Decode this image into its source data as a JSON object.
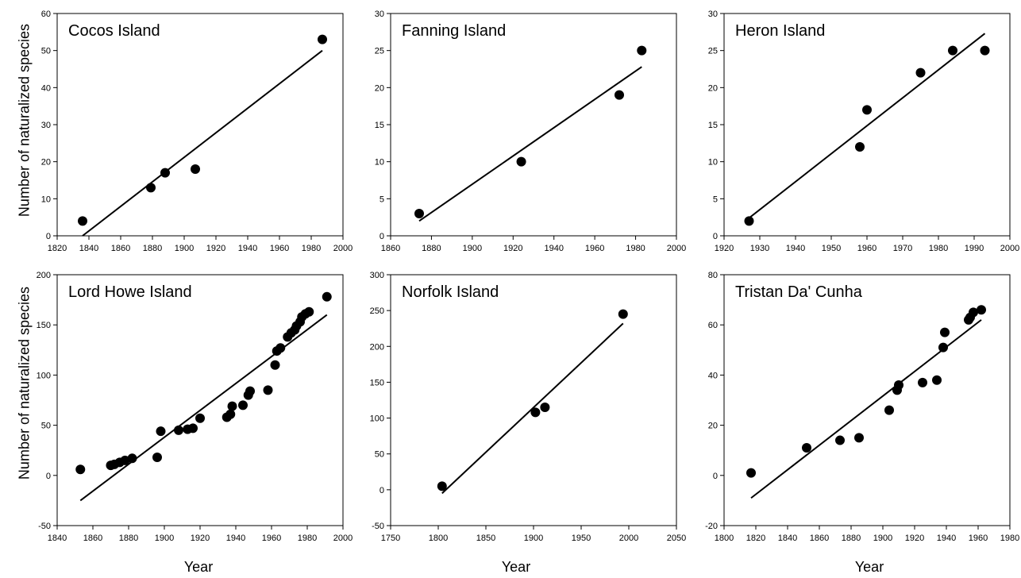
{
  "figure": {
    "ylabel": "Number of naturalized species",
    "xlabel": "Year"
  },
  "chart_data": [
    {
      "type": "scatter",
      "title": "Cocos Island",
      "xlim": [
        1820,
        2000
      ],
      "ylim": [
        0,
        60
      ],
      "xticks": [
        1820,
        1840,
        1860,
        1880,
        1900,
        1920,
        1940,
        1960,
        1980,
        2000
      ],
      "yticks": [
        0,
        10,
        20,
        30,
        40,
        50,
        60
      ],
      "points": [
        [
          1836,
          4
        ],
        [
          1879,
          13
        ],
        [
          1888,
          17
        ],
        [
          1907,
          18
        ],
        [
          1987,
          53
        ]
      ],
      "fit": [
        [
          1836,
          0
        ],
        [
          1987,
          50
        ]
      ]
    },
    {
      "type": "scatter",
      "title": "Fanning Island",
      "xlim": [
        1860,
        2000
      ],
      "ylim": [
        0,
        30
      ],
      "xticks": [
        1860,
        1880,
        1900,
        1920,
        1940,
        1960,
        1980,
        2000
      ],
      "yticks": [
        0,
        5,
        10,
        15,
        20,
        25,
        30
      ],
      "points": [
        [
          1874,
          3
        ],
        [
          1924,
          10
        ],
        [
          1972,
          19
        ],
        [
          1983,
          25
        ]
      ],
      "fit": [
        [
          1874,
          2
        ],
        [
          1983,
          22.8
        ]
      ]
    },
    {
      "type": "scatter",
      "title": "Heron Island",
      "xlim": [
        1920,
        2000
      ],
      "ylim": [
        0,
        30
      ],
      "xticks": [
        1920,
        1930,
        1940,
        1950,
        1960,
        1970,
        1980,
        1990,
        2000
      ],
      "yticks": [
        0,
        5,
        10,
        15,
        20,
        25,
        30
      ],
      "points": [
        [
          1927,
          2
        ],
        [
          1958,
          12
        ],
        [
          1960,
          17
        ],
        [
          1975,
          22
        ],
        [
          1984,
          25
        ],
        [
          1993,
          25
        ]
      ],
      "fit": [
        [
          1927,
          2.4
        ],
        [
          1993,
          27.3
        ]
      ]
    },
    {
      "type": "scatter",
      "title": "Lord Howe Island",
      "xlim": [
        1840,
        2000
      ],
      "ylim": [
        -50,
        200
      ],
      "xticks": [
        1840,
        1860,
        1880,
        1900,
        1920,
        1940,
        1960,
        1980,
        2000
      ],
      "yticks": [
        -50,
        0,
        50,
        100,
        150,
        200
      ],
      "points": [
        [
          1853,
          6
        ],
        [
          1870,
          10
        ],
        [
          1872,
          11
        ],
        [
          1875,
          13
        ],
        [
          1878,
          15
        ],
        [
          1882,
          17
        ],
        [
          1896,
          18
        ],
        [
          1898,
          44
        ],
        [
          1908,
          45
        ],
        [
          1913,
          46
        ],
        [
          1916,
          47
        ],
        [
          1920,
          57
        ],
        [
          1935,
          58
        ],
        [
          1937,
          61
        ],
        [
          1938,
          69
        ],
        [
          1944,
          70
        ],
        [
          1947,
          80
        ],
        [
          1948,
          84
        ],
        [
          1958,
          85
        ],
        [
          1962,
          110
        ],
        [
          1963,
          124
        ],
        [
          1965,
          127
        ],
        [
          1969,
          138
        ],
        [
          1971,
          142
        ],
        [
          1973,
          145
        ],
        [
          1974,
          149
        ],
        [
          1976,
          153
        ],
        [
          1977,
          158
        ],
        [
          1979,
          161
        ],
        [
          1981,
          163
        ],
        [
          1991,
          178
        ]
      ],
      "fit": [
        [
          1853,
          -25
        ],
        [
          1991,
          160
        ]
      ]
    },
    {
      "type": "scatter",
      "title": "Norfolk Island",
      "xlim": [
        1750,
        2050
      ],
      "ylim": [
        -50,
        300
      ],
      "xticks": [
        1750,
        1800,
        1850,
        1900,
        1950,
        2000,
        2050
      ],
      "yticks": [
        -50,
        0,
        50,
        100,
        150,
        200,
        250,
        300
      ],
      "points": [
        [
          1804,
          5
        ],
        [
          1902,
          108
        ],
        [
          1912,
          115
        ],
        [
          1994,
          245
        ]
      ],
      "fit": [
        [
          1804,
          -5
        ],
        [
          1994,
          232
        ]
      ]
    },
    {
      "type": "scatter",
      "title": "Tristan Da' Cunha",
      "xlim": [
        1800,
        1980
      ],
      "ylim": [
        -20,
        80
      ],
      "xticks": [
        1800,
        1820,
        1840,
        1860,
        1880,
        1900,
        1920,
        1940,
        1960,
        1980
      ],
      "yticks": [
        -20,
        0,
        20,
        40,
        60,
        80
      ],
      "points": [
        [
          1817,
          1
        ],
        [
          1852,
          11
        ],
        [
          1873,
          14
        ],
        [
          1885,
          15
        ],
        [
          1904,
          26
        ],
        [
          1909,
          34
        ],
        [
          1910,
          36
        ],
        [
          1925,
          37
        ],
        [
          1934,
          38
        ],
        [
          1938,
          51
        ],
        [
          1939,
          57
        ],
        [
          1954,
          62
        ],
        [
          1955,
          63
        ],
        [
          1957,
          65
        ],
        [
          1962,
          66
        ]
      ],
      "fit": [
        [
          1817,
          -9
        ],
        [
          1962,
          62
        ]
      ]
    }
  ]
}
